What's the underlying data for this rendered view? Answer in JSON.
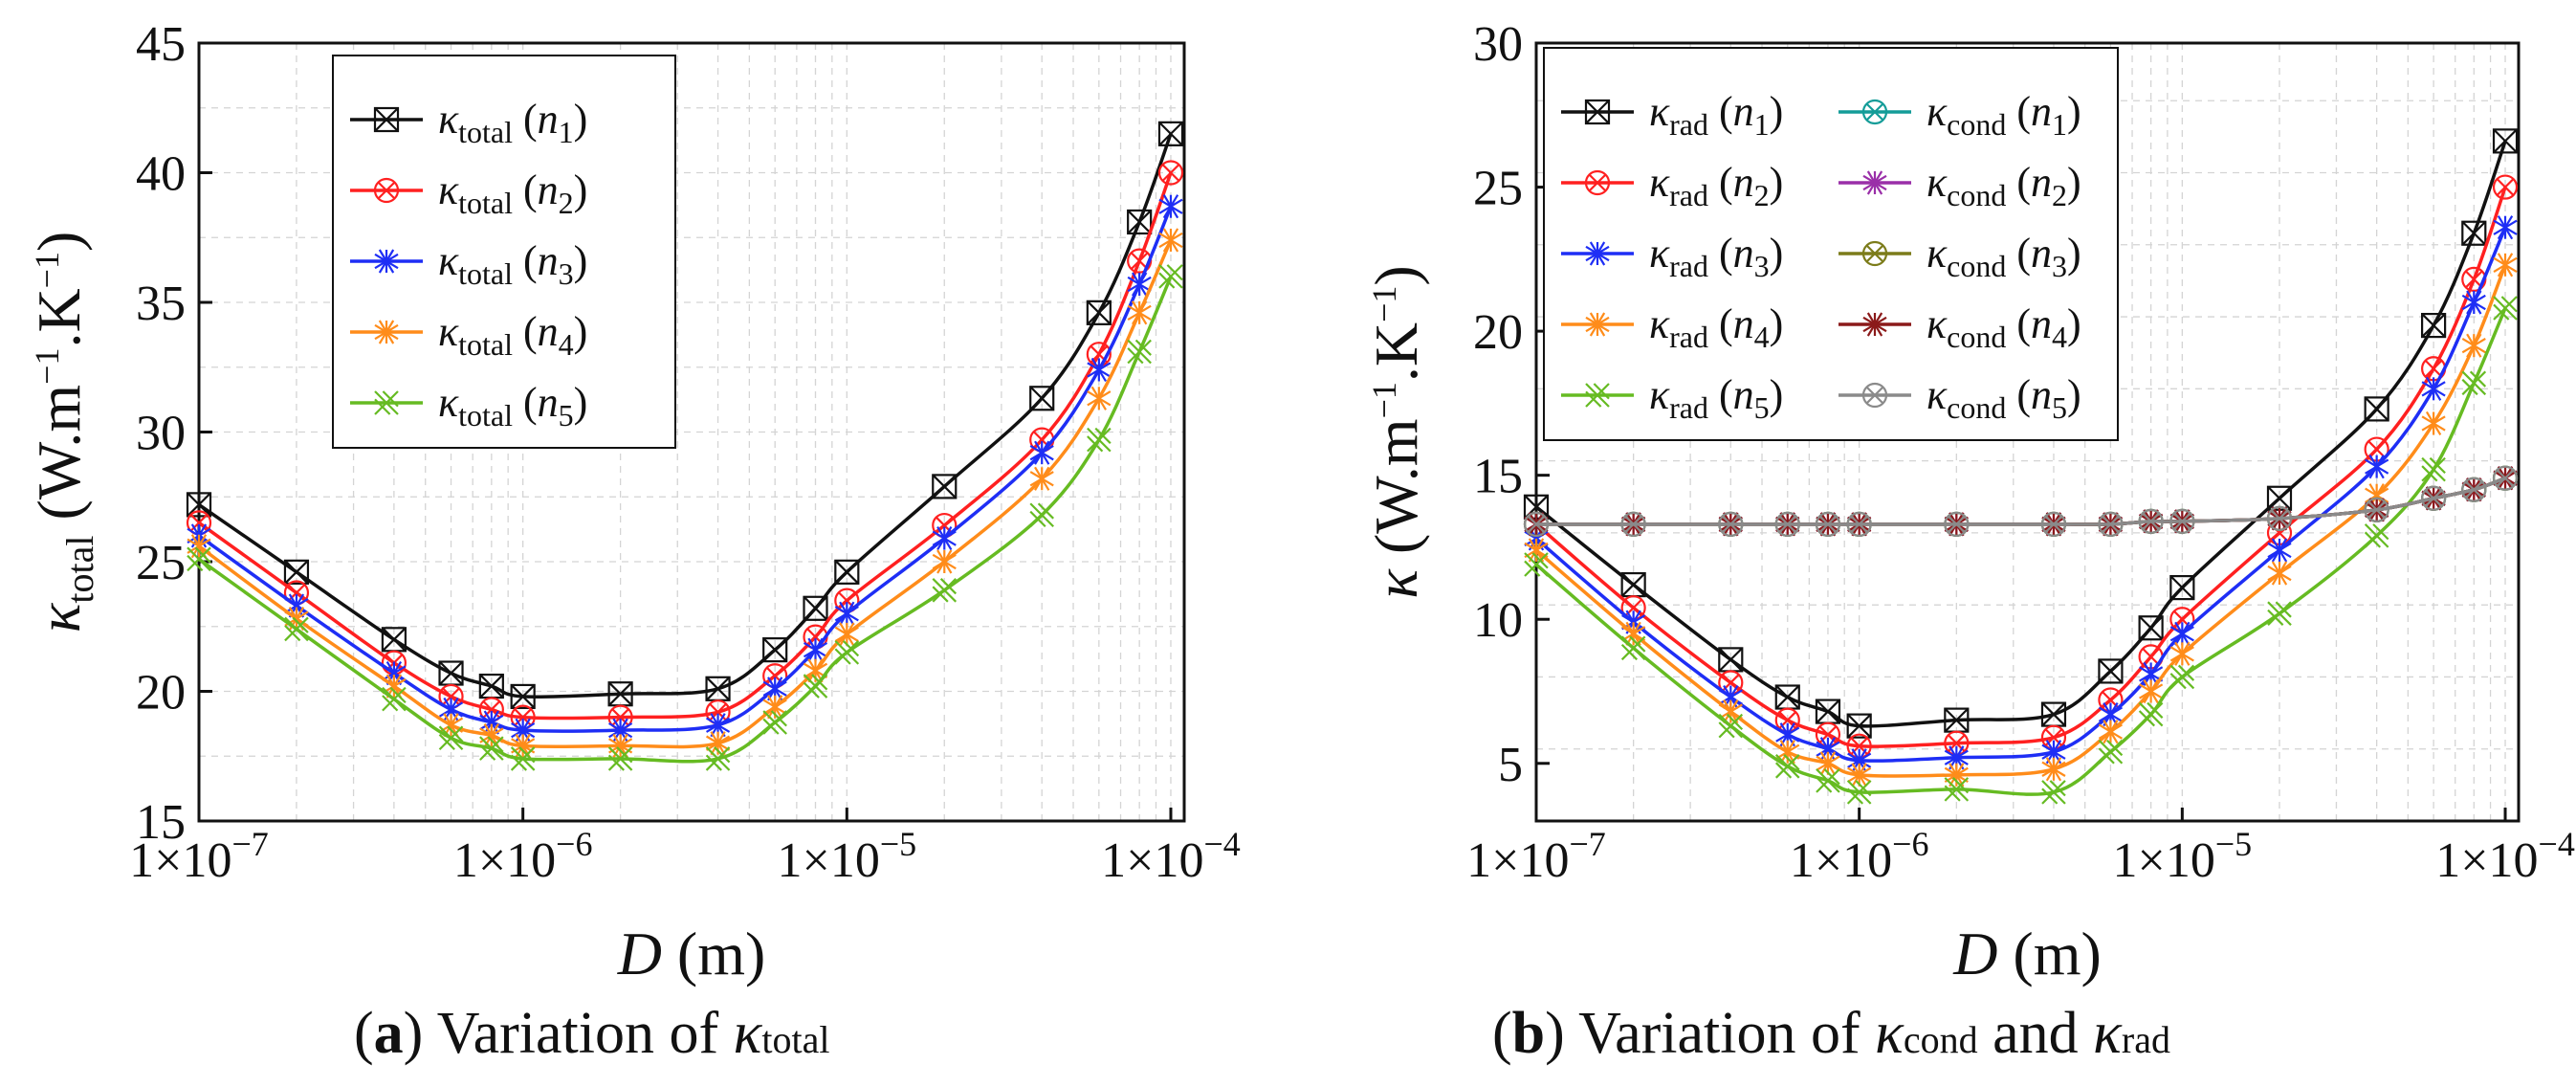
{
  "captions": {
    "a": {
      "letter": "a",
      "text": " Variation of ",
      "kappa": "κ",
      "sub": "total"
    },
    "b": {
      "letter": "b",
      "text": " Variation of ",
      "kappa1": "κ",
      "sub1": "cond",
      "and": " and ",
      "kappa2": "κ",
      "sub2": "rad"
    }
  },
  "chart_data": [
    {
      "type": "line",
      "panel": "a",
      "xscale": "log",
      "xlabel": "D (m)",
      "ylabel": "κtotal (W.m−1.K−1)",
      "xlim": [
        1e-07,
        0.00011
      ],
      "ylim": [
        15,
        45
      ],
      "xticks": [
        1e-07,
        1e-06,
        1e-05,
        0.0001
      ],
      "xtick_labels": [
        "1×10−7",
        "1×10−6",
        "1×10−5",
        "1×10−4"
      ],
      "yticks": [
        15,
        20,
        25,
        30,
        35,
        40,
        45
      ],
      "legend": "top-left",
      "x": [
        1e-07,
        2e-07,
        4e-07,
        6e-07,
        8e-07,
        1e-06,
        2e-06,
        4e-06,
        6e-06,
        8e-06,
        1e-05,
        2e-05,
        4e-05,
        6e-05,
        8e-05,
        0.0001
      ],
      "series": [
        {
          "name": "κtotal (n1)",
          "sym": "κ",
          "sub": "total",
          "n": "1",
          "color": "#111111",
          "marker": "boxx",
          "values": [
            27.2,
            24.6,
            22.0,
            20.7,
            20.2,
            19.8,
            19.9,
            20.1,
            21.6,
            23.2,
            24.6,
            27.9,
            31.3,
            34.6,
            38.1,
            41.5
          ]
        },
        {
          "name": "κtotal (n2)",
          "sym": "κ",
          "sub": "total",
          "n": "2",
          "color": "#ff2020",
          "marker": "circx",
          "values": [
            26.5,
            23.8,
            21.1,
            19.8,
            19.3,
            19.0,
            19.0,
            19.2,
            20.6,
            22.1,
            23.5,
            26.4,
            29.7,
            33.0,
            36.6,
            40.0
          ]
        },
        {
          "name": "κtotal (n3)",
          "sym": "κ",
          "sub": "total",
          "n": "3",
          "color": "#1e2ef5",
          "marker": "star",
          "values": [
            26.0,
            23.3,
            20.7,
            19.3,
            18.8,
            18.5,
            18.5,
            18.7,
            20.1,
            21.6,
            23.0,
            25.9,
            29.2,
            32.4,
            35.7,
            38.7
          ]
        },
        {
          "name": "κtotal (n4)",
          "sym": "κ",
          "sub": "total",
          "n": "4",
          "color": "#ff8c1a",
          "marker": "star",
          "values": [
            25.6,
            22.8,
            20.2,
            18.7,
            18.3,
            17.9,
            17.9,
            18.0,
            19.4,
            20.8,
            22.2,
            25.0,
            28.2,
            31.3,
            34.6,
            37.4
          ]
        },
        {
          "name": "κtotal (n5)",
          "sym": "κ",
          "sub": "total",
          "n": "5",
          "color": "#66bb22",
          "marker": "xx",
          "values": [
            25.1,
            22.4,
            19.7,
            18.2,
            17.8,
            17.4,
            17.4,
            17.4,
            18.8,
            20.2,
            21.5,
            23.9,
            26.8,
            29.7,
            33.1,
            36.0
          ]
        }
      ]
    },
    {
      "type": "line",
      "panel": "b",
      "xscale": "log",
      "xlabel": "D (m)",
      "ylabel": "κ (W.m−1.K−1)",
      "xlim": [
        1e-07,
        0.00011
      ],
      "ylim": [
        3,
        30
      ],
      "xticks": [
        1e-07,
        1e-06,
        1e-05,
        0.0001
      ],
      "xtick_labels": [
        "1×10−7",
        "1×10−6",
        "1×10−5",
        "1×10−4"
      ],
      "yticks": [
        5,
        10,
        15,
        20,
        25,
        30
      ],
      "legend": "top-left",
      "x": [
        1e-07,
        2e-07,
        4e-07,
        6e-07,
        8e-07,
        1e-06,
        2e-06,
        4e-06,
        6e-06,
        8e-06,
        1e-05,
        2e-05,
        4e-05,
        6e-05,
        8e-05,
        0.0001
      ],
      "series": [
        {
          "name": "κrad (n1)",
          "sym": "κ",
          "sub": "rad",
          "n": "1",
          "color": "#111111",
          "marker": "boxx",
          "values": [
            13.9,
            11.2,
            8.6,
            7.3,
            6.8,
            6.3,
            6.5,
            6.7,
            8.2,
            9.7,
            11.1,
            14.2,
            17.3,
            20.2,
            23.4,
            26.6
          ]
        },
        {
          "name": "κrad (n2)",
          "sym": "κ",
          "sub": "rad",
          "n": "2",
          "color": "#ff2020",
          "marker": "circx",
          "values": [
            13.3,
            10.4,
            7.8,
            6.5,
            6.0,
            5.6,
            5.7,
            5.9,
            7.2,
            8.7,
            10.0,
            13.0,
            15.9,
            18.7,
            21.8,
            25.0
          ]
        },
        {
          "name": "κrad (n3)",
          "sym": "κ",
          "sub": "rad",
          "n": "3",
          "color": "#1e2ef5",
          "marker": "star",
          "values": [
            12.8,
            9.9,
            7.3,
            6.0,
            5.5,
            5.1,
            5.2,
            5.4,
            6.7,
            8.1,
            9.5,
            12.4,
            15.3,
            18.0,
            21.0,
            23.6
          ]
        },
        {
          "name": "κrad (n4)",
          "sym": "κ",
          "sub": "rad",
          "n": "4",
          "color": "#ff8c1a",
          "marker": "star",
          "values": [
            12.4,
            9.5,
            6.8,
            5.4,
            5.0,
            4.6,
            4.6,
            4.8,
            6.1,
            7.5,
            8.8,
            11.6,
            14.3,
            16.8,
            19.5,
            22.3
          ]
        },
        {
          "name": "κrad (n5)",
          "sym": "κ",
          "sub": "rad",
          "n": "5",
          "color": "#66bb22",
          "marker": "xx",
          "values": [
            11.9,
            9.0,
            6.3,
            4.9,
            4.4,
            4.0,
            4.1,
            4.0,
            5.4,
            6.7,
            8.0,
            10.2,
            12.9,
            15.2,
            18.2,
            20.8
          ]
        },
        {
          "name": "κcond (n1)",
          "sym": "κ",
          "sub": "cond",
          "n": "1",
          "color": "#139c98",
          "marker": "circx",
          "values": [
            13.3,
            13.3,
            13.3,
            13.3,
            13.3,
            13.3,
            13.3,
            13.3,
            13.3,
            13.4,
            13.4,
            13.5,
            13.8,
            14.2,
            14.5,
            14.9
          ]
        },
        {
          "name": "κcond (n2)",
          "sym": "κ",
          "sub": "cond",
          "n": "2",
          "color": "#9a2fa8",
          "marker": "star",
          "values": [
            13.3,
            13.3,
            13.3,
            13.3,
            13.3,
            13.3,
            13.3,
            13.3,
            13.3,
            13.4,
            13.4,
            13.5,
            13.8,
            14.2,
            14.5,
            14.9
          ]
        },
        {
          "name": "κcond (n3)",
          "sym": "κ",
          "sub": "cond",
          "n": "3",
          "color": "#7c7c1a",
          "marker": "circx",
          "values": [
            13.3,
            13.3,
            13.3,
            13.3,
            13.3,
            13.3,
            13.3,
            13.3,
            13.3,
            13.4,
            13.4,
            13.5,
            13.8,
            14.2,
            14.5,
            14.9
          ]
        },
        {
          "name": "κcond (n4)",
          "sym": "κ",
          "sub": "cond",
          "n": "4",
          "color": "#8b1a1a",
          "marker": "star",
          "values": [
            13.3,
            13.3,
            13.3,
            13.3,
            13.3,
            13.3,
            13.3,
            13.3,
            13.3,
            13.4,
            13.4,
            13.5,
            13.8,
            14.2,
            14.5,
            14.9
          ]
        },
        {
          "name": "κcond (n5)",
          "sym": "κ",
          "sub": "cond",
          "n": "5",
          "color": "#8a8a8a",
          "marker": "circx",
          "values": [
            13.3,
            13.3,
            13.3,
            13.3,
            13.3,
            13.3,
            13.3,
            13.3,
            13.3,
            13.4,
            13.4,
            13.5,
            13.8,
            14.2,
            14.5,
            14.9
          ]
        }
      ]
    }
  ]
}
